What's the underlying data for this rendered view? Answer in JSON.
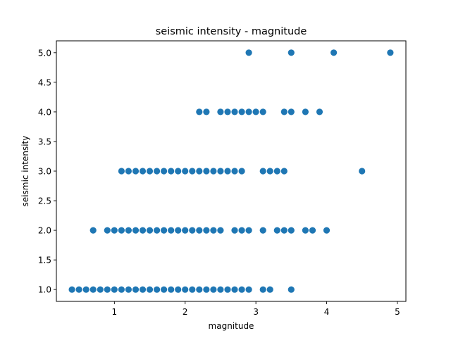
{
  "chart_data": {
    "type": "scatter",
    "title": "seismic intensity - magnitude",
    "xlabel": "magnitude",
    "ylabel": "seismic intensity",
    "xlim": [
      0.18,
      5.12
    ],
    "ylim": [
      0.8,
      5.2
    ],
    "xticks": [
      "1",
      "2",
      "3",
      "4",
      "5"
    ],
    "yticks": [
      "1.0",
      "1.5",
      "2.0",
      "2.5",
      "3.0",
      "3.5",
      "4.0",
      "4.5",
      "5.0"
    ],
    "grid": false,
    "marker_color": "#1f77b4",
    "series": [
      {
        "points": [
          [
            0.4,
            1
          ],
          [
            0.5,
            1
          ],
          [
            0.6,
            1
          ],
          [
            0.7,
            1
          ],
          [
            0.8,
            1
          ],
          [
            0.9,
            1
          ],
          [
            1.0,
            1
          ],
          [
            1.1,
            1
          ],
          [
            1.2,
            1
          ],
          [
            1.3,
            1
          ],
          [
            1.4,
            1
          ],
          [
            1.5,
            1
          ],
          [
            1.6,
            1
          ],
          [
            1.7,
            1
          ],
          [
            1.8,
            1
          ],
          [
            1.9,
            1
          ],
          [
            2.0,
            1
          ],
          [
            2.1,
            1
          ],
          [
            2.2,
            1
          ],
          [
            2.3,
            1
          ],
          [
            2.4,
            1
          ],
          [
            2.5,
            1
          ],
          [
            2.6,
            1
          ],
          [
            2.7,
            1
          ],
          [
            2.8,
            1
          ],
          [
            2.9,
            1
          ],
          [
            3.1,
            1
          ],
          [
            3.2,
            1
          ],
          [
            3.5,
            1
          ],
          [
            0.7,
            2
          ],
          [
            0.9,
            2
          ],
          [
            1.0,
            2
          ],
          [
            1.1,
            2
          ],
          [
            1.2,
            2
          ],
          [
            1.3,
            2
          ],
          [
            1.4,
            2
          ],
          [
            1.5,
            2
          ],
          [
            1.6,
            2
          ],
          [
            1.7,
            2
          ],
          [
            1.8,
            2
          ],
          [
            1.9,
            2
          ],
          [
            2.0,
            2
          ],
          [
            2.1,
            2
          ],
          [
            2.2,
            2
          ],
          [
            2.3,
            2
          ],
          [
            2.4,
            2
          ],
          [
            2.5,
            2
          ],
          [
            2.7,
            2
          ],
          [
            2.8,
            2
          ],
          [
            2.9,
            2
          ],
          [
            3.1,
            2
          ],
          [
            3.3,
            2
          ],
          [
            3.4,
            2
          ],
          [
            3.5,
            2
          ],
          [
            3.7,
            2
          ],
          [
            3.8,
            2
          ],
          [
            4.0,
            2
          ],
          [
            1.1,
            3
          ],
          [
            1.2,
            3
          ],
          [
            1.3,
            3
          ],
          [
            1.4,
            3
          ],
          [
            1.5,
            3
          ],
          [
            1.6,
            3
          ],
          [
            1.7,
            3
          ],
          [
            1.8,
            3
          ],
          [
            1.9,
            3
          ],
          [
            2.0,
            3
          ],
          [
            2.1,
            3
          ],
          [
            2.2,
            3
          ],
          [
            2.3,
            3
          ],
          [
            2.4,
            3
          ],
          [
            2.5,
            3
          ],
          [
            2.6,
            3
          ],
          [
            2.7,
            3
          ],
          [
            2.8,
            3
          ],
          [
            3.1,
            3
          ],
          [
            3.2,
            3
          ],
          [
            3.3,
            3
          ],
          [
            3.4,
            3
          ],
          [
            4.5,
            3
          ],
          [
            2.2,
            4
          ],
          [
            2.3,
            4
          ],
          [
            2.5,
            4
          ],
          [
            2.6,
            4
          ],
          [
            2.7,
            4
          ],
          [
            2.8,
            4
          ],
          [
            2.9,
            4
          ],
          [
            3.0,
            4
          ],
          [
            3.1,
            4
          ],
          [
            3.4,
            4
          ],
          [
            3.5,
            4
          ],
          [
            3.7,
            4
          ],
          [
            3.9,
            4
          ],
          [
            2.9,
            5
          ],
          [
            3.5,
            5
          ],
          [
            4.1,
            5
          ],
          [
            4.9,
            5
          ]
        ]
      }
    ]
  }
}
